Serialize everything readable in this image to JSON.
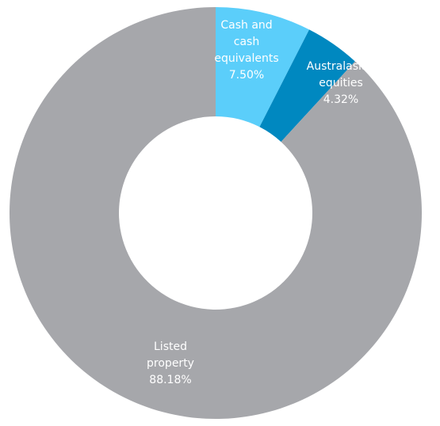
{
  "chart_data": {
    "type": "pie",
    "style": "donut",
    "start": "top",
    "direction": "clockwise",
    "legend": "none",
    "slices": [
      {
        "label_lines": [
          "Cash and",
          "cash",
          "equivalents"
        ],
        "value_label": "7.50%",
        "value": 7.5,
        "color": "#5bcefa"
      },
      {
        "label_lines": [
          "Australasian",
          "equities"
        ],
        "value_label": "4.32%",
        "value": 4.32,
        "color": "#0088c0"
      },
      {
        "label_lines": [
          "Listed",
          "property"
        ],
        "value_label": "88.18%",
        "value": 88.18,
        "color": "#a6a7ab"
      }
    ]
  }
}
